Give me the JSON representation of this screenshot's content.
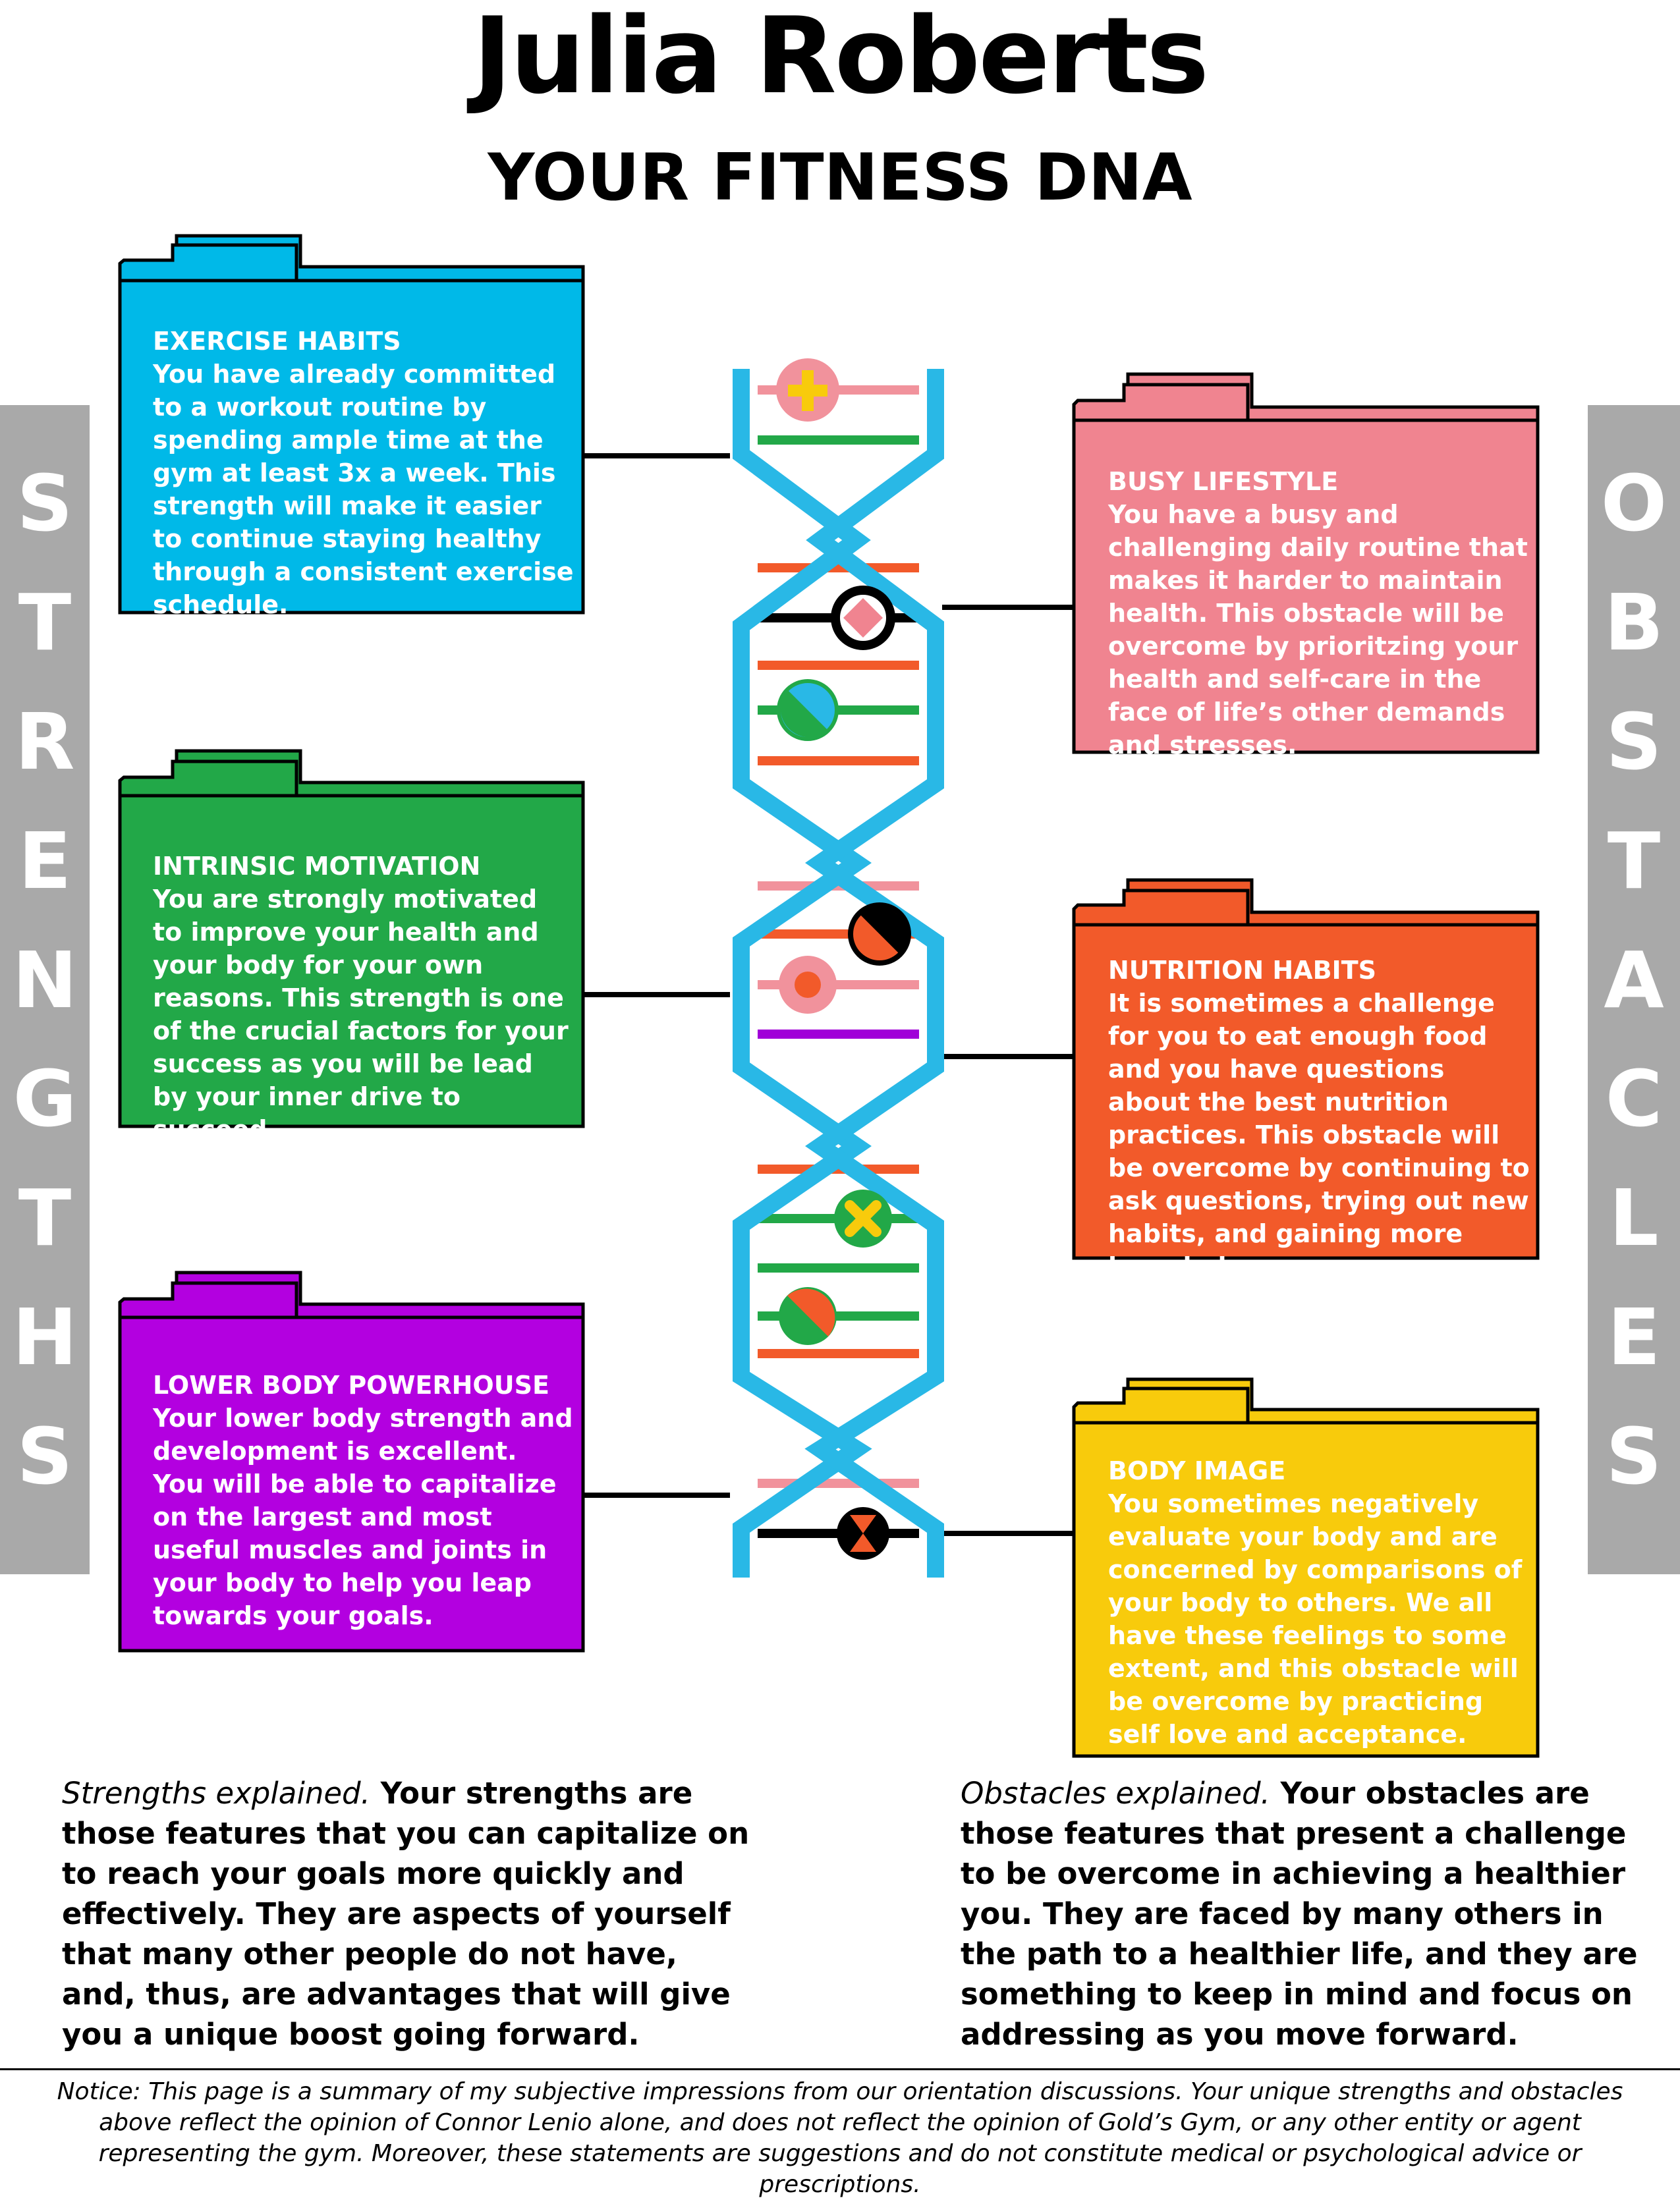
{
  "header": {
    "name": "Julia Roberts",
    "subtitle": "YOUR FITNESS DNA"
  },
  "sidebars": {
    "left_letters": [
      "S",
      "T",
      "R",
      "E",
      "N",
      "G",
      "T",
      "H",
      "S"
    ],
    "right_letters": [
      "O",
      "B",
      "S",
      "T",
      "A",
      "C",
      "L",
      "E",
      "S"
    ],
    "color": "#a9a9a9"
  },
  "strengths": [
    {
      "title": "EXERCISE HABITS",
      "body": "You have already committed to a workout routine by spending ample time at the gym at least 3x a week. This strength will make it easier to continue staying healthy through a consistent exercise schedule.",
      "color": "#00b9e8"
    },
    {
      "title": "INTRINSIC MOTIVATION",
      "body": "You are strongly motivated to improve your health and your body for your own reasons. This strength is one of the crucial factors for your success as you will be lead by your inner drive to succeed.",
      "color": "#22a848"
    },
    {
      "title": "LOWER BODY POWERHOUSE",
      "body": "Your lower body strength and development is excellent. You will be able to capitalize on the largest and most useful muscles and joints in your body to help you leap towards your goals.",
      "color": "#b300e0"
    }
  ],
  "obstacles": [
    {
      "title": "BUSY LIFESTYLE",
      "body": "You have a busy and challenging daily routine that makes it harder to maintain health. This obstacle will be overcome by prioritzing your health and self-care in the face of life’s other demands and stresses.",
      "color": "#f08490"
    },
    {
      "title": "NUTRITION HABITS",
      "body": "It is sometimes a challenge for you to eat enough food and you have questions about the best nutrition practices. This obstacle will be overcome by continuing to ask questions, trying out new habits,  and gaining more knowledge.",
      "color": "#f25a2a"
    },
    {
      "title": "BODY IMAGE",
      "body": "You sometimes negatively evaluate your body and are concerned by comparisons of your body to others.  We all have these feelings to some extent, and this obstacle will be overcome by practicing self love and acceptance.",
      "color": "#f8cb0c"
    }
  ],
  "explanations": {
    "strengths_lead": "Strengths explained.",
    "strengths_text": "Your strengths are those features that you can capitalize on to reach your goals more quickly and effectively. They are aspects of yourself that many other people do not have, and, thus, are advantages that will give you a unique boost going forward.",
    "obstacles_lead": "Obstacles explained.",
    "obstacles_text": "Your obstacles are those features that present a challenge to be overcome in achieving a healthier you. They are faced by many others in the path to a healthier life, and they are something to keep in mind and focus on addressing as you move forward."
  },
  "notice": "Notice: This page is a summary of my subjective impressions from our orientation discussions. Your unique strengths and obstacles above reflect the opinion of Connor Lenio alone, and does not reflect the opinion of Gold’s Gym, or any other entity or agent representing the gym. Moreover, these statements are suggestions and do not constitute medical or psychological advice or prescriptions.",
  "dna": {
    "strand_color": "#29b8e6",
    "icons": [
      {
        "name": "plus-icon"
      },
      {
        "name": "diamond-icon"
      },
      {
        "name": "half-circle-icon"
      },
      {
        "name": "half-circle-icon"
      },
      {
        "name": "target-icon"
      },
      {
        "name": "x-icon"
      },
      {
        "name": "half-circle-icon"
      },
      {
        "name": "hourglass-icon"
      }
    ]
  }
}
